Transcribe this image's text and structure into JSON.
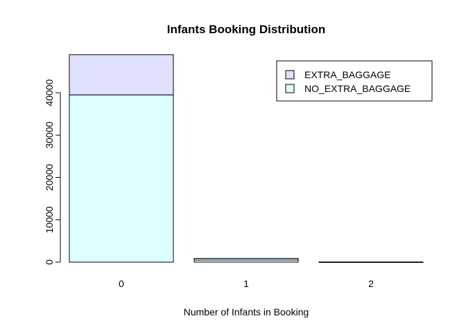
{
  "chart_data": {
    "type": "bar",
    "stacked": true,
    "title": "Infants Booking Distribution",
    "xlabel": "Number of Infants in Booking",
    "ylabel": "",
    "categories": [
      "0",
      "1",
      "2"
    ],
    "series": [
      {
        "name": "NO_EXTRA_BAGGAGE",
        "values": [
          39500,
          500,
          20
        ],
        "color": "#dcffff"
      },
      {
        "name": "EXTRA_BAGGAGE",
        "values": [
          9500,
          400,
          10
        ],
        "color": "#e0e0ff"
      }
    ],
    "legend_order": [
      1,
      0
    ],
    "legend_position": "top-right",
    "yticks": [
      0,
      10000,
      20000,
      30000,
      40000
    ],
    "ytick_labels": [
      "0",
      "10000",
      "20000",
      "30000",
      "40000"
    ],
    "ylim": [
      0,
      49000
    ],
    "grid": false
  }
}
